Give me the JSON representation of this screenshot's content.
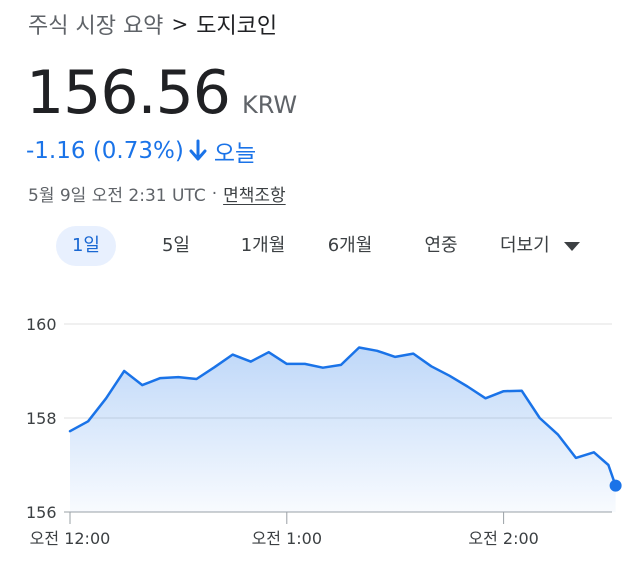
{
  "breadcrumb": {
    "root": "주식 시장 요약",
    "separator": ">",
    "current": "도지코인"
  },
  "quote": {
    "price": "156.56",
    "currency": "KRW",
    "change": "-1.16 (0.73%)",
    "direction_icon": "arrow-down-icon",
    "period": "오늘",
    "timestamp": "5월 9일 오전 2:31 UTC",
    "dot": "·",
    "disclaimer": "면책조항"
  },
  "tabs": [
    {
      "label": "1일",
      "active": true
    },
    {
      "label": "5일",
      "active": false
    },
    {
      "label": "1개월",
      "active": false
    },
    {
      "label": "6개월",
      "active": false
    },
    {
      "label": "연중",
      "active": false
    },
    {
      "label": "더보기",
      "active": false,
      "icon": "caret-down-icon"
    }
  ],
  "colors": {
    "accent": "#1a73e8",
    "line": "#1a73e8",
    "grid": "#e0e0e0"
  },
  "chart_data": {
    "type": "area",
    "ylim": [
      156,
      160
    ],
    "yticks": [
      156,
      158,
      160
    ],
    "ytick_labels": [
      "156",
      "158",
      "160"
    ],
    "xlim": [
      0,
      150
    ],
    "xticks": [
      0,
      60,
      120
    ],
    "xtick_labels": [
      "오전 12:00",
      "오전 1:00",
      "오전 2:00"
    ],
    "grid": true,
    "series": [
      {
        "x": [
          0,
          5,
          10,
          15,
          20,
          25,
          30,
          35,
          40,
          45,
          50,
          55,
          60,
          65,
          70,
          75,
          80,
          85,
          90,
          95,
          100,
          105,
          110,
          115,
          120,
          125,
          130,
          135,
          140,
          145,
          149,
          151
        ],
        "y": [
          157.72,
          157.93,
          158.42,
          159.0,
          158.7,
          158.85,
          158.87,
          158.83,
          159.08,
          159.35,
          159.2,
          159.4,
          159.15,
          159.15,
          159.07,
          159.13,
          159.5,
          159.43,
          159.3,
          159.37,
          159.1,
          158.9,
          158.67,
          158.42,
          158.57,
          158.58,
          158.0,
          157.65,
          157.15,
          157.27,
          157.0,
          156.56
        ]
      }
    ]
  }
}
